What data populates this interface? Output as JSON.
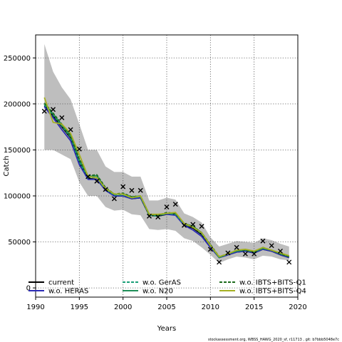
{
  "footer_text": "stockassessment.org, WBSS_HAWG_2020_sf, r11713 , git: b7bbb5048e7c",
  "chart_data": {
    "type": "line",
    "title": "",
    "xlabel": "Years",
    "ylabel": "Catch",
    "xlim": [
      1990,
      2020
    ],
    "ylim": [
      -10000,
      275000
    ],
    "x_ticks": [
      1990,
      1995,
      2000,
      2005,
      2010,
      2015,
      2020
    ],
    "y_ticks": [
      0,
      50000,
      100000,
      150000,
      200000,
      250000
    ],
    "x_tick_labels": [
      "1990",
      "1995",
      "2000",
      "2005",
      "2010",
      "2015",
      "2020"
    ],
    "y_tick_labels": [
      "0",
      "50000",
      "100000",
      "150000",
      "200000",
      "250000"
    ],
    "grid": true,
    "legend_position": "bottom",
    "x": [
      1991,
      1992,
      1993,
      1994,
      1995,
      1996,
      1997,
      1998,
      1999,
      2000,
      2001,
      2002,
      2003,
      2004,
      2005,
      2006,
      2007,
      2008,
      2009,
      2010,
      2011,
      2012,
      2013,
      2014,
      2015,
      2016,
      2017,
      2018,
      2019
    ],
    "observed": {
      "marker": "x",
      "values": [
        192000,
        194000,
        185000,
        172000,
        151000,
        121000,
        116000,
        107000,
        97000,
        110000,
        106000,
        106000,
        78000,
        77000,
        88000,
        91000,
        68000,
        69000,
        67000,
        42000,
        28000,
        38000,
        44000,
        37000,
        37000,
        51000,
        46000,
        40000,
        28000
      ]
    },
    "confidence_band": {
      "color": "#bebebe",
      "lower": [
        150000,
        150000,
        145000,
        140000,
        115000,
        100000,
        100000,
        88000,
        84000,
        85000,
        80000,
        79000,
        64000,
        63000,
        64000,
        62000,
        54000,
        51000,
        44000,
        36000,
        27000,
        31000,
        34000,
        33000,
        31000,
        35000,
        34000,
        31000,
        30000
      ],
      "upper": [
        265000,
        235000,
        218000,
        205000,
        178000,
        150000,
        150000,
        132000,
        126000,
        126000,
        121000,
        121000,
        95000,
        95000,
        98000,
        96000,
        81000,
        77000,
        71000,
        55000,
        45000,
        48000,
        51000,
        50000,
        49000,
        54000,
        52000,
        48000,
        45000
      ]
    },
    "series": [
      {
        "name": "current",
        "style": "solid",
        "color": "#000000",
        "values": [
          198000,
          187000,
          175000,
          163000,
          136000,
          119000,
          118000,
          107000,
          100000,
          100000,
          97000,
          98000,
          79000,
          78000,
          80000,
          80000,
          68000,
          65000,
          58000,
          45000,
          33000,
          36000,
          39000,
          40000,
          38000,
          42000,
          40000,
          36000,
          33000
        ]
      },
      {
        "name": "w.o. HERAS",
        "style": "solid",
        "color": "#2b2bb5",
        "values": [
          197000,
          185000,
          172000,
          160000,
          134000,
          118000,
          118000,
          106000,
          100000,
          100000,
          97000,
          98000,
          80000,
          79000,
          80000,
          79000,
          68000,
          63000,
          56000,
          44000,
          33000,
          36000,
          39000,
          40000,
          38000,
          42000,
          40000,
          36000,
          33000
        ]
      },
      {
        "name": "w.o. GerAS",
        "style": "dashed",
        "color": "#1a9e77",
        "values": [
          199000,
          188000,
          176000,
          164000,
          137000,
          120000,
          120000,
          107000,
          101000,
          101000,
          98000,
          99000,
          79000,
          78000,
          81000,
          80000,
          69000,
          66000,
          59000,
          46000,
          33000,
          37000,
          40000,
          41000,
          39000,
          43000,
          41000,
          37000,
          34000
        ]
      },
      {
        "name": "w.o. N20",
        "style": "solid",
        "color": "#1f8f58",
        "values": [
          200000,
          189000,
          177000,
          165000,
          139000,
          121000,
          122000,
          108000,
          102000,
          102000,
          99000,
          100000,
          80000,
          79000,
          81000,
          81000,
          70000,
          67000,
          60000,
          46000,
          33000,
          37000,
          40000,
          41000,
          39000,
          43000,
          41000,
          37000,
          34000
        ]
      },
      {
        "name": "w.o. IBTS+BITS-Q1",
        "style": "dashed",
        "color": "#1c6b1c",
        "values": [
          201000,
          190000,
          178000,
          166000,
          140000,
          122000,
          123000,
          109000,
          102000,
          103000,
          99000,
          100000,
          80000,
          79000,
          82000,
          81000,
          70000,
          67000,
          60000,
          47000,
          34000,
          37000,
          41000,
          41000,
          39000,
          44000,
          41000,
          37000,
          34000
        ]
      },
      {
        "name": "w.o. IBTS+BITS-Q4",
        "style": "solid",
        "color": "#a6b023",
        "values": [
          207000,
          180000,
          178000,
          168000,
          145000,
          121000,
          120000,
          108000,
          102000,
          102000,
          98000,
          100000,
          80000,
          80000,
          81000,
          82000,
          70000,
          66000,
          60000,
          46000,
          34000,
          37000,
          41000,
          42000,
          40000,
          44000,
          41000,
          38000,
          35000
        ]
      }
    ]
  }
}
